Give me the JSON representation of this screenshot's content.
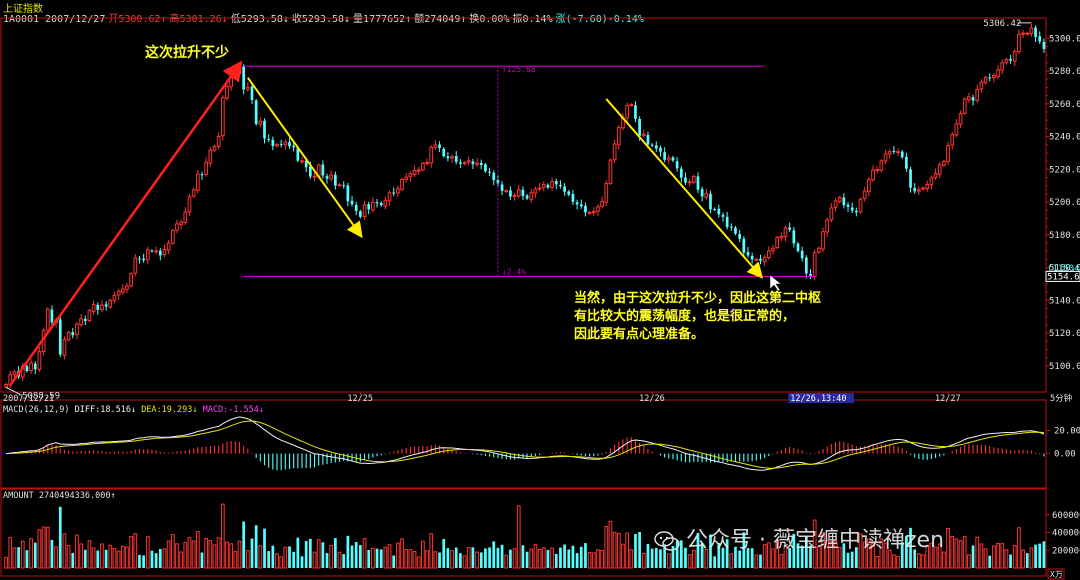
{
  "header": {
    "title": "上证指数",
    "row": [
      {
        "text": "1A0001 2007/12/27",
        "color": "#dcdcdc"
      },
      {
        "text": "开5300.62↑",
        "color": "#ff3b3b"
      },
      {
        "text": "高5301.26↓",
        "color": "#ff3b3b"
      },
      {
        "text": "低5293.58↓",
        "color": "#dcdcdc"
      },
      {
        "text": "收5293.58↓",
        "color": "#dcdcdc"
      },
      {
        "text": "量1777652↑",
        "color": "#dcdcdc"
      },
      {
        "text": "额274049↑",
        "color": "#dcdcdc"
      },
      {
        "text": "换0.00%",
        "color": "#dcdcdc"
      },
      {
        "text": "振0.14%",
        "color": "#dcdcdc"
      },
      {
        "text": "涨(-7.60)-0.14%",
        "color": "#5ff"
      }
    ]
  },
  "chart_data": [
    {
      "type": "candlestick",
      "name": "price",
      "y_ticks": [
        5300.0,
        5280.0,
        5260.0,
        5240.0,
        5220.0,
        5200.0,
        5180.0,
        5160.0,
        5140.0,
        5120.0,
        5100.0
      ],
      "y_range": [
        5084,
        5310
      ],
      "x_labels": [
        "2007/12/21",
        "12/25",
        "12/26",
        "12/26,13:40",
        "12/27"
      ],
      "x_label_index": [
        0,
        85,
        155,
        195,
        226
      ],
      "period_label": "5分钟",
      "high_label": "5306.42",
      "low_label": "5088.59",
      "right_markers": [
        "(11504)",
        "5154.60"
      ],
      "bands": {
        "top": 5283,
        "bottom": 5154.6,
        "top_label": "125.68",
        "bottom_label": "2.4%"
      },
      "closes": [
        5088.59,
        5094.5,
        5096.3,
        5093.4,
        5099.8,
        5096.8,
        5101.8,
        5097.9,
        5108.6,
        5121.4,
        5134.7,
        5126.5,
        5128.0,
        5106.9,
        5116.0,
        5120.4,
        5118.7,
        5125.4,
        5128.7,
        5127.4,
        5133.7,
        5137.4,
        5134.2,
        5137.1,
        5136.2,
        5140.0,
        5143.0,
        5145.5,
        5146.9,
        5148.7,
        5156.2,
        5165.8,
        5165.4,
        5164.5,
        5170.8,
        5170.3,
        5170.2,
        5167.4,
        5171.0,
        5174.9,
        5182.6,
        5186.7,
        5187.7,
        5193.9,
        5203.2,
        5207.5,
        5217.0,
        5216.6,
        5224.3,
        5231.8,
        5233.9,
        5240.1,
        5263.8,
        5270.5,
        5276.1,
        5278.8,
        5283.0,
        5268.8,
        5270.1,
        5262.4,
        5247.7,
        5249.4,
        5238.9,
        5238.2,
        5234.2,
        5235.1,
        5235.3,
        5236.6,
        5234.1,
        5233.4,
        5225.3,
        5225.2,
        5221.3,
        5215.6,
        5215.8,
        5222.6,
        5216.3,
        5214.3,
        5216.5,
        5210.1,
        5210.6,
        5210.2,
        5200.5,
        5198.7,
        5194.5,
        5191.0,
        5198.3,
        5195.6,
        5199.9,
        5199.2,
        5198.1,
        5200.9,
        5205.7,
        5205.2,
        5208.1,
        5213.8,
        5215.2,
        5217.3,
        5219.3,
        5219.5,
        5223.7,
        5224.2,
        5233.4,
        5234.9,
        5233.0,
        5228.1,
        5226.8,
        5227.7,
        5224.6,
        5223.4,
        5224.1,
        5225.3,
        5223.2,
        5223.8,
        5222.6,
        5218.8,
        5217.9,
        5213.4,
        5211.2,
        5206.8,
        5207.0,
        5203.4,
        5204.1,
        5207.5,
        5203.7,
        5202.2,
        5205.7,
        5207.9,
        5208.6,
        5210.8,
        5208.9,
        5212.5,
        5210.9,
        5209.7,
        5206.3,
        5204.5,
        5200.2,
        5198.6,
        5197.4,
        5193.7,
        5193.7,
        5194.3,
        5197.1,
        5200.3,
        5211.4,
        5225.6,
        5235.5,
        5245.5,
        5251.3,
        5258.9,
        5259.5,
        5250.8,
        5240.4,
        5241.5,
        5235.2,
        5234.5,
        5232.7,
        5230.8,
        5225.8,
        5227.0,
        5225.4,
        5220.6,
        5214.9,
        5211.9,
        5212.4,
        5215.7,
        5207.6,
        5203.4,
        5205.2,
        5195.6,
        5195.5,
        5192.5,
        5191.0,
        5184.7,
        5184.9,
        5180.7,
        5177.5,
        5169.1,
        5167.4,
        5165.0,
        5165.0,
        5164.1,
        5166.3,
        5170.1,
        5171.8,
        5178.4,
        5179.0,
        5184.2,
        5183.2,
        5174.8,
        5170.1,
        5165.7,
        5156.4,
        5154.6,
        5169.1,
        5171.8,
        5181.9,
        5189.0,
        5196.4,
        5200.7,
        5202.8,
        5198.1,
        5197.1,
        5194.8,
        5193.8,
        5201.8,
        5206.7,
        5213.7,
        5219.5,
        5219.9,
        5225.2,
        5229.3,
        5230.8,
        5230.8,
        5230.8,
        5227.4,
        5220.4,
        5208.8,
        5206.6,
        5207.5,
        5208.6,
        5210.7,
        5214.7,
        5217.5,
        5222.6,
        5224.7,
        5234.5,
        5241.3,
        5247.7,
        5254.0,
        5263.0,
        5264.2,
        5262.0,
        5268.8,
        5273.2,
        5276.1,
        5275.7,
        5277.3,
        5280.8,
        5285.0,
        5287.0,
        5286.4,
        5291.9,
        5302.4,
        5303.2,
        5303.1,
        5306.4,
        5300.8,
        5298.1,
        5293.58
      ]
    },
    {
      "type": "line",
      "name": "macd",
      "title": "MACD(26,12,9)",
      "diff_label": "DIFF:18.516↓",
      "dea_label": "DEA:19.293↓",
      "macd_label": "MACD:-1.554↓",
      "y_ticks": [
        20.0,
        0.0
      ],
      "y_range": [
        -30,
        45
      ]
    },
    {
      "type": "bar",
      "name": "amount",
      "title": "AMOUNT 2740494336.000↑",
      "y_ticks": [
        "600000",
        "400000",
        "200000"
      ],
      "unit": "万",
      "y_range": [
        0,
        800000
      ]
    }
  ],
  "annotations": {
    "top_note": "这次拉升不少",
    "bottom_note": [
      "当然，由于这次拉升不少，因此这第二中枢",
      "有比较大的震荡幅度，也是很正常的，",
      "因此要有点心理准备。"
    ]
  },
  "watermark": "公众号 · 薇宝缠中读禅zen",
  "colors": {
    "up": "#ff3333",
    "down": "#55ffff",
    "axis": "#c01010",
    "band": "#c000c0",
    "arrow_red": "#ff2020",
    "arrow_yellow": "#ffee00",
    "diff": "#f0f0f0",
    "dea": "#e6e600",
    "macd_pos": "#ff3333",
    "macd_neg": "#55ffff"
  }
}
